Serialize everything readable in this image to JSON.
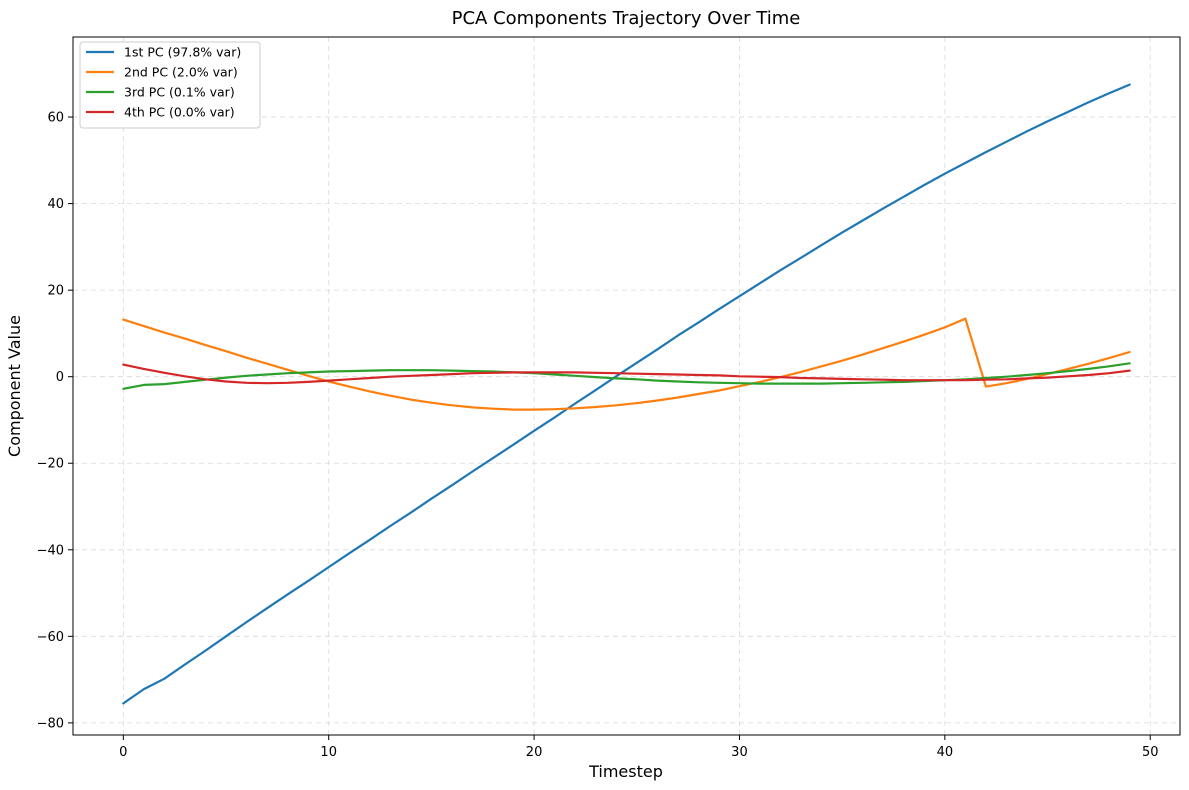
{
  "chart_data": {
    "type": "line",
    "title": "PCA Components Trajectory Over Time",
    "xlabel": "Timestep",
    "ylabel": "Component Value",
    "xlim": [
      -2.45,
      51.45
    ],
    "ylim": [
      -82.8,
      78.5
    ],
    "xticks": [
      0,
      10,
      20,
      30,
      40,
      50
    ],
    "yticks": [
      -80,
      -60,
      -40,
      -20,
      0,
      20,
      40,
      60
    ],
    "grid": true,
    "legend_position": "top-left",
    "x": [
      0,
      1,
      2,
      3,
      4,
      5,
      6,
      7,
      8,
      9,
      10,
      11,
      12,
      13,
      14,
      15,
      16,
      17,
      18,
      19,
      20,
      21,
      22,
      23,
      24,
      25,
      26,
      27,
      28,
      29,
      30,
      31,
      32,
      33,
      34,
      35,
      36,
      37,
      38,
      39,
      40,
      41,
      42,
      43,
      44,
      45,
      46,
      47,
      48,
      49
    ],
    "series": [
      {
        "name": "1st PC (97.8% var)",
        "color": "#1f77b4",
        "values": [
          -75.5,
          -72.2,
          -69.8,
          -66.5,
          -63.3,
          -60.0,
          -56.7,
          -53.5,
          -50.3,
          -47.2,
          -44.0,
          -40.8,
          -37.7,
          -34.5,
          -31.4,
          -28.2,
          -25.1,
          -21.9,
          -18.8,
          -15.7,
          -12.5,
          -9.4,
          -6.2,
          -3.1,
          0.1,
          3.2,
          6.3,
          9.5,
          12.5,
          15.6,
          18.6,
          21.6,
          24.6,
          27.5,
          30.4,
          33.3,
          36.1,
          38.9,
          41.6,
          44.3,
          46.9,
          49.4,
          51.9,
          54.3,
          56.7,
          59.0,
          61.2,
          63.4,
          65.5,
          67.5
        ]
      },
      {
        "name": "2nd PC (2.0% var)",
        "color": "#ff7f0e",
        "values": [
          13.2,
          11.7,
          10.2,
          8.8,
          7.3,
          5.9,
          4.4,
          3.0,
          1.6,
          0.2,
          -1.1,
          -2.3,
          -3.4,
          -4.4,
          -5.3,
          -6.0,
          -6.6,
          -7.1,
          -7.4,
          -7.6,
          -7.6,
          -7.5,
          -7.3,
          -7.0,
          -6.6,
          -6.1,
          -5.5,
          -4.8,
          -4.0,
          -3.2,
          -2.2,
          -1.2,
          -0.1,
          1.1,
          2.4,
          3.7,
          5.1,
          6.6,
          8.1,
          9.7,
          11.4,
          13.4,
          -2.3,
          -1.5,
          -0.5,
          0.6,
          1.8,
          3.0,
          4.3,
          5.7
        ]
      },
      {
        "name": "3rd PC (0.1% var)",
        "color": "#2ca02c",
        "values": [
          -2.8,
          -1.9,
          -1.7,
          -1.2,
          -0.7,
          -0.2,
          0.2,
          0.5,
          0.8,
          1.0,
          1.2,
          1.3,
          1.4,
          1.5,
          1.5,
          1.5,
          1.4,
          1.3,
          1.2,
          1.0,
          0.8,
          0.5,
          0.2,
          -0.1,
          -0.4,
          -0.6,
          -0.9,
          -1.1,
          -1.3,
          -1.4,
          -1.5,
          -1.6,
          -1.6,
          -1.6,
          -1.6,
          -1.5,
          -1.4,
          -1.3,
          -1.2,
          -1.0,
          -0.8,
          -0.6,
          -0.3,
          0.0,
          0.4,
          0.8,
          1.3,
          1.8,
          2.4,
          3.1
        ]
      },
      {
        "name": "4th PC (0.0% var)",
        "color": "#d62728",
        "values": [
          2.8,
          1.8,
          0.9,
          0.1,
          -0.6,
          -1.1,
          -1.4,
          -1.5,
          -1.4,
          -1.2,
          -0.9,
          -0.6,
          -0.3,
          0.0,
          0.2,
          0.4,
          0.6,
          0.8,
          0.9,
          1.0,
          1.0,
          1.0,
          1.0,
          0.9,
          0.8,
          0.7,
          0.6,
          0.5,
          0.4,
          0.3,
          0.1,
          0.0,
          -0.1,
          -0.3,
          -0.4,
          -0.5,
          -0.6,
          -0.7,
          -0.8,
          -0.8,
          -0.8,
          -0.8,
          -0.7,
          -0.6,
          -0.4,
          -0.2,
          0.1,
          0.4,
          0.8,
          1.4
        ]
      }
    ]
  }
}
